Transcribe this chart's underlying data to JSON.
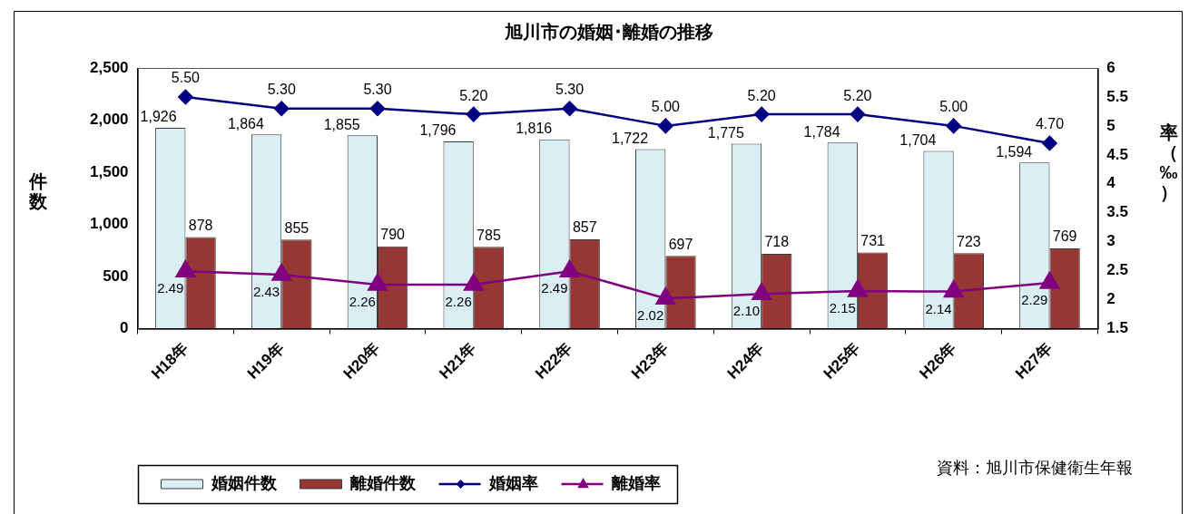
{
  "chart_data": {
    "type": "bar",
    "title": "旭川市の婚姻･離婚の推移",
    "ylabel": "件数",
    "y2label": "率（‰）",
    "annotations": [
      "資料：旭川市保健衛生年報"
    ],
    "categories": [
      "H18年",
      "H19年",
      "H20年",
      "H21年",
      "H22年",
      "H23年",
      "H24年",
      "H25年",
      "H26年",
      "H27年"
    ],
    "series": [
      {
        "name": "婚姻件数",
        "color": "#daeef3",
        "values": [
          1926,
          1864,
          1855,
          1796,
          1816,
          1722,
          1775,
          1784,
          1704,
          1594
        ],
        "value_labels": [
          "1,926",
          "1,864",
          "1,855",
          "1,796",
          "1,816",
          "1,722",
          "1,775",
          "1,784",
          "1,704",
          "1,594"
        ]
      },
      {
        "name": "離婚件数",
        "color": "#953735",
        "values": [
          878,
          855,
          790,
          785,
          857,
          697,
          718,
          731,
          723,
          769
        ],
        "value_labels": [
          "878",
          "855",
          "790",
          "785",
          "857",
          "697",
          "718",
          "731",
          "723",
          "769"
        ]
      },
      {
        "name": "婚姻率",
        "type": "line",
        "axis": "y2",
        "color": "#000080",
        "marker": "diamond",
        "values": [
          5.5,
          5.3,
          5.3,
          5.2,
          5.3,
          5.0,
          5.2,
          5.2,
          5.0,
          4.7
        ],
        "value_labels": [
          "5.50",
          "5.30",
          "5.30",
          "5.20",
          "5.30",
          "5.00",
          "5.20",
          "5.20",
          "5.00",
          "4.70"
        ]
      },
      {
        "name": "離婚率",
        "type": "line",
        "axis": "y2",
        "color": "#800080",
        "marker": "triangle",
        "values": [
          2.49,
          2.43,
          2.26,
          2.26,
          2.49,
          2.02,
          2.1,
          2.15,
          2.14,
          2.29
        ],
        "value_labels": [
          "2.49",
          "2.43",
          "2.26",
          "2.26",
          "2.49",
          "2.02",
          "2.10",
          "2.15",
          "2.14",
          "2.29"
        ]
      }
    ],
    "ylim": [
      0,
      2500
    ],
    "yticks": [
      0,
      500,
      {
        "value": 1000,
        "label": "1,000"
      },
      {
        "value": 1500,
        "label": "1,500"
      },
      {
        "value": 2000,
        "label": "2,000"
      },
      {
        "value": 2500,
        "label": "2,500"
      }
    ],
    "y2lim": [
      1.5,
      6
    ],
    "y2ticks": [
      1.5,
      2,
      2.5,
      3,
      3.5,
      4,
      4.5,
      5,
      5.5,
      6
    ],
    "legend": "bottom left"
  }
}
